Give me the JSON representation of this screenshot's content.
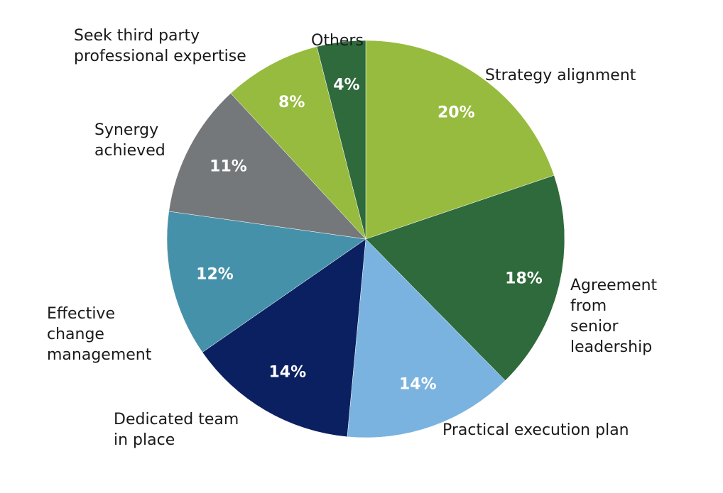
{
  "chart_data": {
    "type": "pie",
    "start_angle_deg": 0,
    "direction": "clockwise",
    "slices": [
      {
        "label": "Strategy alignment",
        "value": 20,
        "value_label": "20%",
        "color": "#96bb3e"
      },
      {
        "label": "Agreement from senior leadership",
        "value": 18,
        "value_label": "18%",
        "color": "#2e6a3b"
      },
      {
        "label": "Practical execution plan",
        "value": 14,
        "value_label": "14%",
        "color": "#7ab3df"
      },
      {
        "label": "Dedicated team in place",
        "value": 14,
        "value_label": "14%",
        "color": "#0b2060"
      },
      {
        "label": "Effective change management",
        "value": 12,
        "value_label": "12%",
        "color": "#4591a9"
      },
      {
        "label": "Synergy achieved",
        "value": 11,
        "value_label": "11%",
        "color": "#75787b"
      },
      {
        "label": "Seek third party professional expertise",
        "value": 8,
        "value_label": "8%",
        "color": "#96bb3e"
      },
      {
        "label": "Others",
        "value": 4,
        "value_label": "4%",
        "color": "#2e6a3b"
      }
    ],
    "labels_lines": [
      [
        "Strategy alignment"
      ],
      [
        "Agreement",
        "from",
        "senior",
        "leadership"
      ],
      [
        "Practical execution plan"
      ],
      [
        "Dedicated team",
        "in place"
      ],
      [
        "Effective",
        "change",
        "management"
      ],
      [
        "Synergy",
        "achieved"
      ],
      [
        "Seek third party",
        "professional expertise"
      ],
      [
        "Others"
      ]
    ],
    "legend": "none"
  }
}
